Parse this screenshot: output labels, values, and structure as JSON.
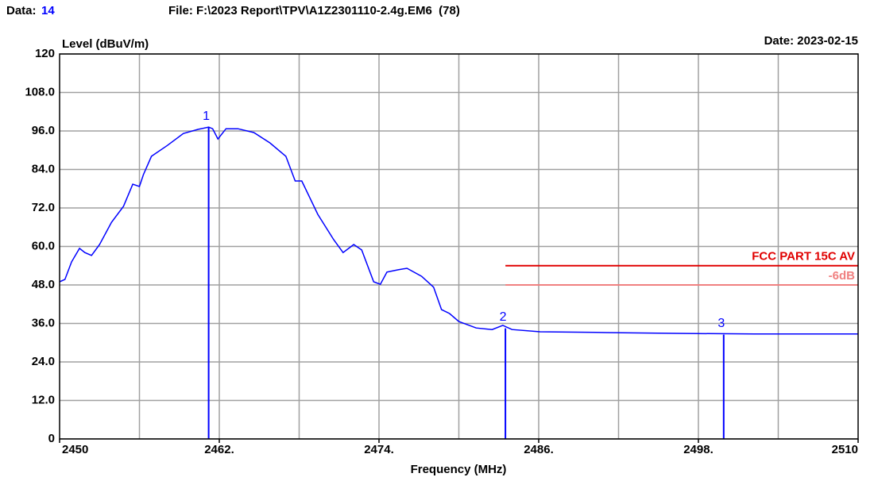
{
  "chart_data": {
    "type": "line",
    "header": {
      "data_label": "Data:",
      "data_value": "14",
      "file": "File: F:\\2023 Report\\TPV\\A1Z2301110-2.4g.EM6  (78)",
      "date": "Date: 2023-02-15"
    },
    "ylabel": "Level (dBuV/m)",
    "xlabel": "Frequency (MHz)",
    "xlim": [
      2450,
      2510
    ],
    "xticks": [
      2450,
      {
        "value": 2462,
        "label": "2462."
      },
      {
        "value": 2474,
        "label": "2474."
      },
      {
        "value": 2486,
        "label": "2486."
      },
      {
        "value": 2498,
        "label": "2498."
      },
      2510
    ],
    "xgrid": [
      2456,
      2462,
      2468,
      2474,
      2480,
      2486,
      2492,
      2498,
      2504
    ],
    "ylim": [
      0,
      120
    ],
    "yticks": [
      0,
      {
        "value": 12,
        "label": "12.0"
      },
      {
        "value": 24,
        "label": "24.0"
      },
      {
        "value": 36,
        "label": "36.0"
      },
      {
        "value": 48,
        "label": "48.0"
      },
      {
        "value": 60,
        "label": "60.0"
      },
      {
        "value": 72,
        "label": "72.0"
      },
      {
        "value": 84,
        "label": "84.0"
      },
      {
        "value": 96,
        "label": "96.0"
      },
      {
        "value": 108,
        "label": "108.0"
      },
      120
    ],
    "grid": true,
    "color": "#0000ff",
    "x": [
      2450,
      2450.4,
      2450.9,
      2451.5,
      2451.9,
      2452.4,
      2453,
      2453.9,
      2454.8,
      2455.5,
      2456,
      2456.3,
      2456.9,
      2458.1,
      2459.3,
      2460.4,
      2461.2,
      2461.5,
      2461.9,
      2462.5,
      2463.4,
      2464.6,
      2465.8,
      2467,
      2467.7,
      2468.2,
      2469.4,
      2470.6,
      2471.3,
      2472.1,
      2472.7,
      2473.6,
      2474.1,
      2474.6,
      2475.4,
      2476.1,
      2477.2,
      2478.1,
      2478.7,
      2479.3,
      2480,
      2481.3,
      2482.5,
      2483.3,
      2484,
      2486.1,
      2490.3,
      2496.3,
      2502.2,
      2510
    ],
    "values": [
      49,
      49.7,
      55.2,
      59.4,
      58.1,
      57.2,
      60.6,
      67.5,
      72.5,
      79.4,
      78.7,
      82.4,
      88.1,
      91.5,
      95.2,
      96.5,
      97.2,
      96.7,
      93.5,
      96.7,
      96.7,
      95.5,
      92.3,
      88.1,
      80.4,
      80.4,
      70,
      62.1,
      58.1,
      60.6,
      58.9,
      49,
      48.2,
      52,
      52.7,
      53.2,
      50.7,
      47.3,
      40.3,
      39.1,
      36.6,
      34.6,
      34.1,
      35.4,
      34.1,
      33.4,
      33.2,
      32.9,
      32.7,
      32.7
    ],
    "markers": [
      {
        "label": "1",
        "x": 2461.2,
        "y": 97
      },
      {
        "label": "2",
        "x": 2483.5,
        "y": 34.5
      },
      {
        "label": "3",
        "x": 2499.9,
        "y": 32.5
      }
    ],
    "limits": [
      {
        "name": "FCC PART 15C AV",
        "value": 54,
        "color": "#e00000",
        "x": [
          2483.5,
          2510
        ]
      },
      {
        "name": "-6dB",
        "value": 48,
        "color": "#f08080",
        "x": [
          2483.5,
          2510
        ]
      }
    ]
  }
}
